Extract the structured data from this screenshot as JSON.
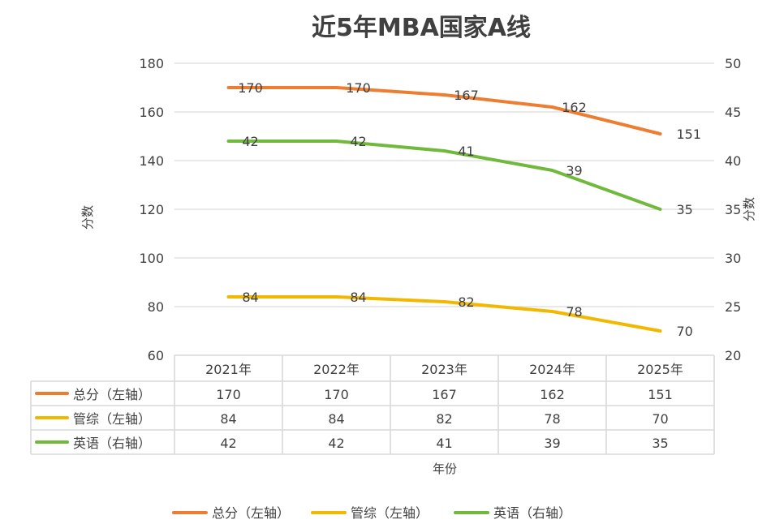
{
  "chart_data": {
    "type": "line",
    "title": "近5年MBA国家A线",
    "xlabel": "年份",
    "ylabel": "分数",
    "y2label": "分数",
    "categories": [
      "2021年",
      "2022年",
      "2023年",
      "2024年",
      "2025年"
    ],
    "ylim": [
      60,
      180
    ],
    "yticks": [
      180,
      160,
      140,
      120,
      100,
      80,
      60
    ],
    "y2lim": [
      20,
      50
    ],
    "y2ticks": [
      50,
      45,
      40,
      35,
      30,
      25,
      20
    ],
    "grid": true,
    "legend_position": "bottom",
    "series": [
      {
        "name": "总分（左轴）",
        "axis": "left",
        "color": "#ED7D31",
        "values": [
          170,
          170,
          167,
          162,
          151
        ]
      },
      {
        "name": "管综（左轴）",
        "axis": "left",
        "color": "#F2B800",
        "values": [
          84,
          84,
          82,
          78,
          70
        ]
      },
      {
        "name": "英语（右轴）",
        "axis": "right",
        "color": "#70B93C",
        "values": [
          42,
          42,
          41,
          39,
          35
        ]
      }
    ]
  }
}
